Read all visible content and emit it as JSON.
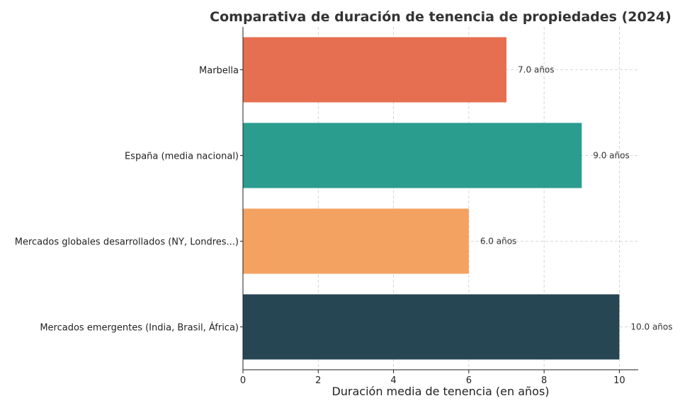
{
  "chart_data": {
    "type": "bar",
    "orientation": "horizontal",
    "title": "Comparativa de duración de tenencia de propiedades (2024)",
    "xlabel": "Duración media de tenencia (en años)",
    "ylabel": "",
    "xlim": [
      0,
      10.5
    ],
    "xticks": [
      0,
      2,
      4,
      6,
      8,
      10
    ],
    "grid": true,
    "categories": [
      "Marbella",
      "España (media nacional)",
      "Mercados globales desarrollados (NY, Londres...)",
      "Mercados emergentes (India, Brasil, África)"
    ],
    "values": [
      7.0,
      9.0,
      6.0,
      10.0
    ],
    "value_labels": [
      "7.0 años",
      "9.0 años",
      "6.0 años",
      "10.0 años"
    ],
    "colors": [
      "#e76f51",
      "#2a9d8f",
      "#f4a261",
      "#264653"
    ]
  }
}
